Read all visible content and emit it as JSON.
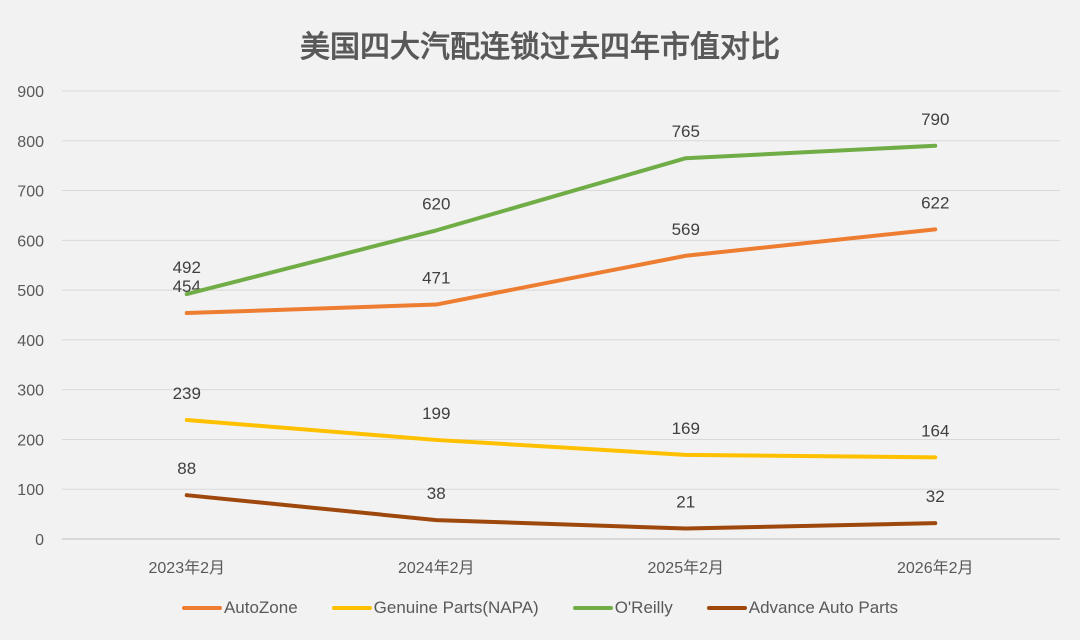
{
  "chart_data": {
    "type": "line",
    "title": "美国四大汽配连锁过去四年市值对比",
    "categories": [
      "2023年2月",
      "2024年2月",
      "2025年2月",
      "2026年2月"
    ],
    "ylim": [
      0,
      900
    ],
    "yticks": [
      0,
      100,
      200,
      300,
      400,
      500,
      600,
      700,
      800,
      900
    ],
    "grid": true,
    "legend": "bottom",
    "series": [
      {
        "name": "AutoZone",
        "color": "#ed7d31",
        "values": [
          454,
          471,
          569,
          622
        ]
      },
      {
        "name": "Genuine Parts(NAPA)",
        "color": "#ffc000",
        "values": [
          239,
          199,
          169,
          164
        ]
      },
      {
        "name": "O'Reilly",
        "color": "#70ad47",
        "values": [
          492,
          620,
          765,
          790
        ]
      },
      {
        "name": "Advance Auto Parts",
        "color": "#9e480e",
        "values": [
          88,
          38,
          21,
          32
        ]
      }
    ]
  }
}
